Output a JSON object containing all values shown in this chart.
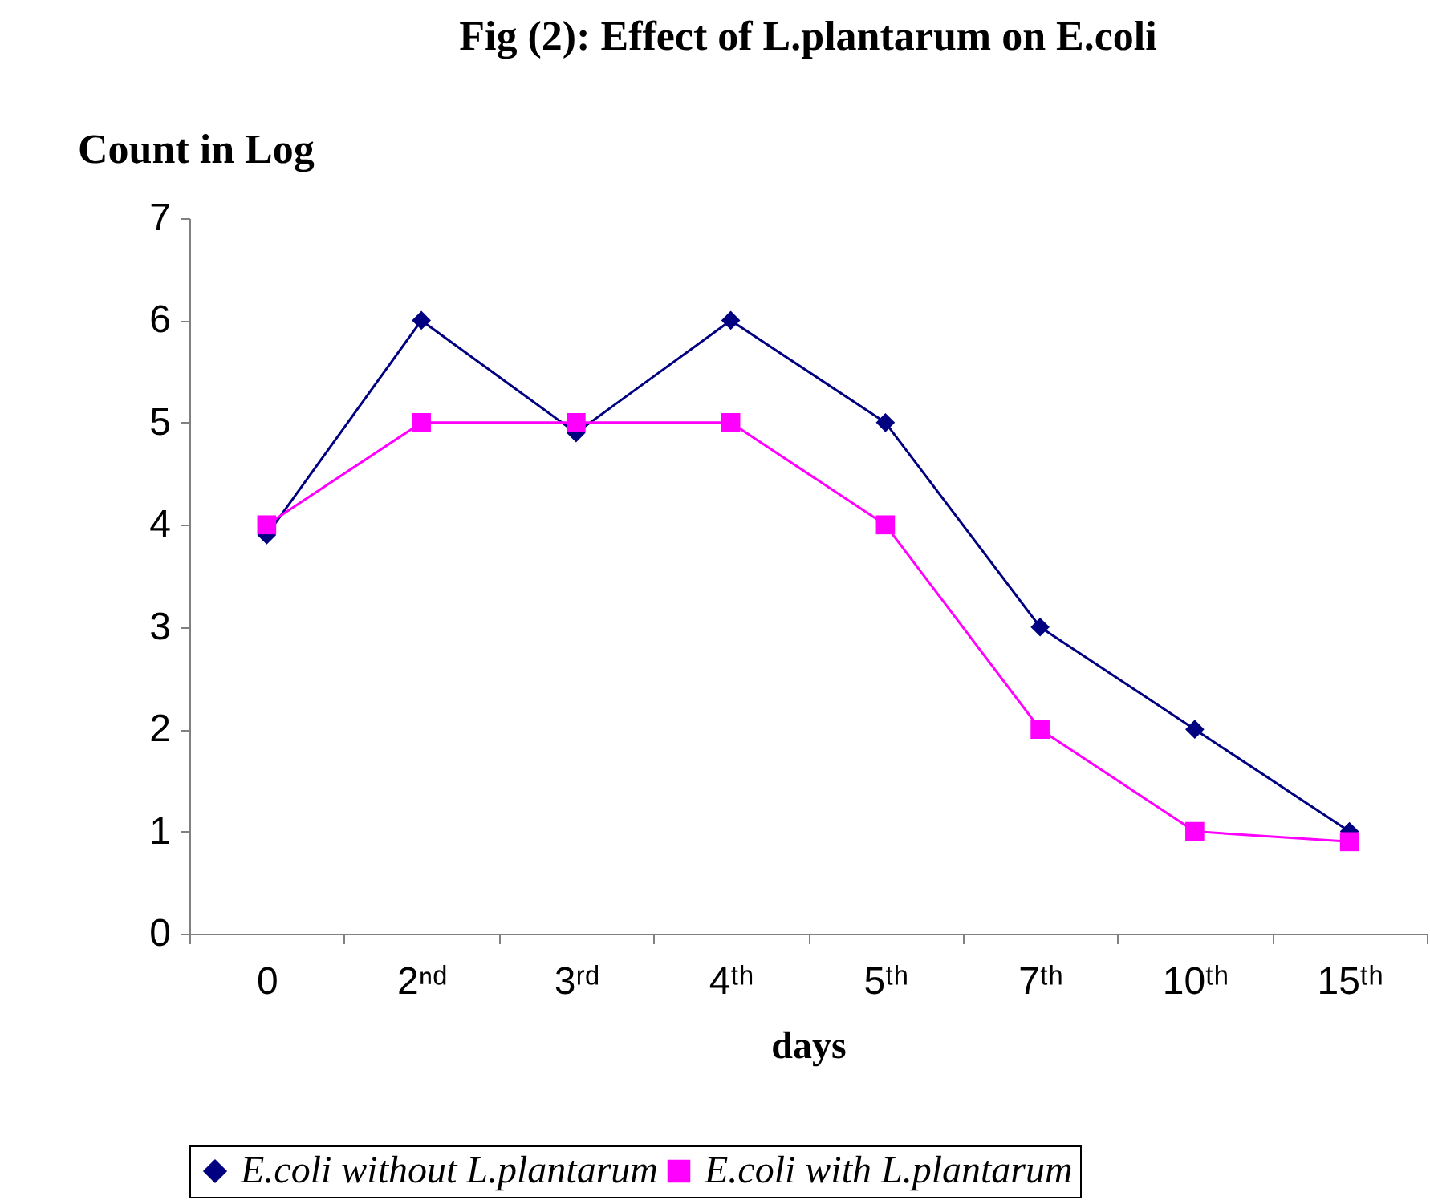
{
  "chart_data": {
    "type": "line",
    "title": "Fig (2): Effect of L.plantarum on E.coli",
    "xlabel": "days",
    "ylabel": "Count in Log",
    "categories": [
      "0",
      "2ⁿᵈ",
      "3ʳᵈ",
      "4ᵗʰ",
      "5ᵗʰ",
      "7ᵗʰ",
      "10ᵗʰ",
      "15ᵗʰ"
    ],
    "series": [
      {
        "name": "E.coli without L.plantarum",
        "color": "#000080",
        "marker": "diamond",
        "values": [
          3.9,
          6,
          4.9,
          6,
          5,
          3,
          2,
          1
        ]
      },
      {
        "name": "E.coli with L.plantarum",
        "color": "#ff00ff",
        "marker": "square",
        "values": [
          4,
          5,
          5,
          5,
          4,
          2,
          1,
          0.9
        ]
      }
    ],
    "ylim": [
      0,
      7
    ],
    "yticks": [
      0,
      1,
      2,
      3,
      4,
      5,
      6,
      7
    ],
    "grid": false,
    "legend": "bottom",
    "line_style": "solid"
  }
}
